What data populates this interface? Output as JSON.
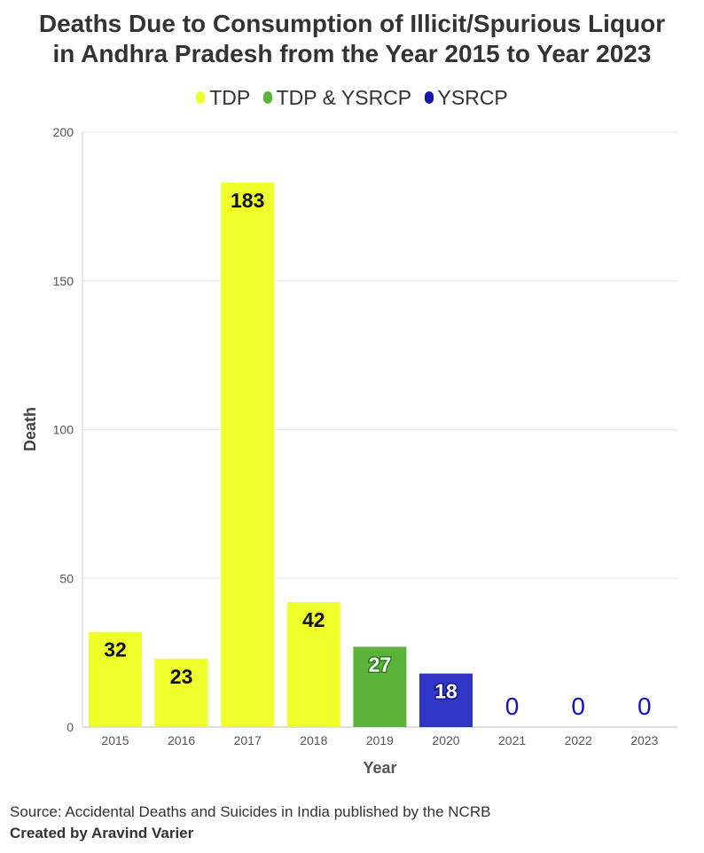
{
  "title_line1": "Deaths Due to Consumption of Illicit/Spurious Liquor",
  "title_line2": "in Andhra Pradesh from the Year 2015 to Year 2023",
  "source": "Source: Accidental Deaths and Suicides in India published by the NCRB",
  "credit": "Created by Aravind Varier",
  "chart_data": {
    "type": "bar",
    "title": "Deaths Due to Consumption of Illicit/Spurious Liquor in Andhra Pradesh from the Year 2015 to Year 2023",
    "xlabel": "Year",
    "ylabel": "Death",
    "categories": [
      "2015",
      "2016",
      "2017",
      "2018",
      "2019",
      "2020",
      "2021",
      "2022",
      "2023"
    ],
    "values": [
      32,
      23,
      183,
      42,
      27,
      18,
      0,
      0,
      0
    ],
    "party": [
      "TDP",
      "TDP",
      "TDP",
      "TDP",
      "TDP & YSRCP",
      "YSRCP",
      "YSRCP",
      "YSRCP",
      "YSRCP"
    ],
    "ylim": [
      0,
      200
    ],
    "yticks": [
      0,
      50,
      100,
      150,
      200
    ],
    "grid": true,
    "legend_position": "top-center",
    "legend": [
      {
        "name": "TDP",
        "color": "#eeff2a"
      },
      {
        "name": "TDP & YSRCP",
        "color": "#5bb33a"
      },
      {
        "name": "YSRCP",
        "color": "#2f35c4"
      }
    ]
  }
}
